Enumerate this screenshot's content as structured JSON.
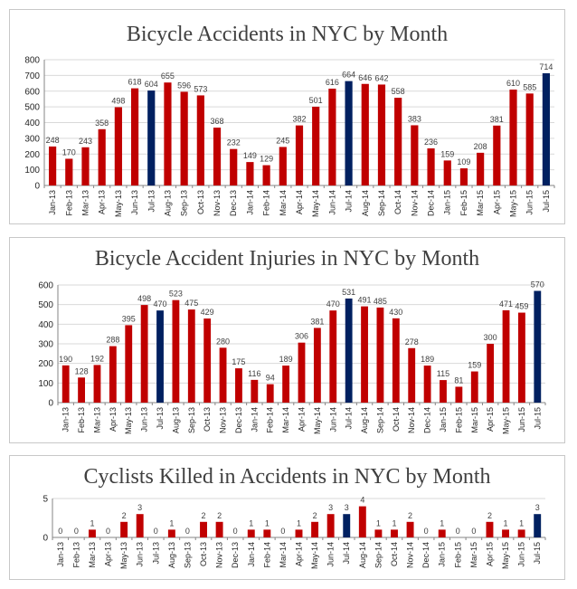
{
  "colors": {
    "red": "#c00000",
    "navy": "#002060"
  },
  "highlight_months": [
    "Jul-13",
    "Jul-14",
    "Jul-15"
  ],
  "chart_data": [
    {
      "type": "bar",
      "title": "Bicycle Accidents in NYC by Month",
      "categories": [
        "Jan-13",
        "Feb-13",
        "Mar-13",
        "Apr-13",
        "May-13",
        "Jun-13",
        "Jul-13",
        "Aug-13",
        "Sep-13",
        "Oct-13",
        "Nov-13",
        "Dec-13",
        "Jan-14",
        "Feb-14",
        "Mar-14",
        "Apr-14",
        "May-14",
        "Jun-14",
        "Jul-14",
        "Aug-14",
        "Sep-14",
        "Oct-14",
        "Nov-14",
        "Dec-14",
        "Jan-15",
        "Feb-15",
        "Mar-15",
        "Apr-15",
        "May-15",
        "Jun-15",
        "Jul-15"
      ],
      "values": [
        248,
        170,
        243,
        358,
        498,
        618,
        604,
        655,
        596,
        573,
        368,
        232,
        149,
        129,
        245,
        382,
        501,
        616,
        664,
        646,
        642,
        558,
        383,
        236,
        159,
        109,
        208,
        381,
        610,
        585,
        714
      ],
      "ylim": [
        0,
        800
      ],
      "yticks": [
        0,
        100,
        200,
        300,
        400,
        500,
        600,
        700,
        800
      ],
      "grid": true
    },
    {
      "type": "bar",
      "title": "Bicycle Accident Injuries in NYC by Month",
      "categories": [
        "Jan-13",
        "Feb-13",
        "Mar-13",
        "Apr-13",
        "May-13",
        "Jun-13",
        "Jul-13",
        "Aug-13",
        "Sep-13",
        "Oct-13",
        "Nov-13",
        "Dec-13",
        "Jan-14",
        "Feb-14",
        "Mar-14",
        "Apr-14",
        "May-14",
        "Jun-14",
        "Jul-14",
        "Aug-14",
        "Sep-14",
        "Oct-14",
        "Nov-14",
        "Dec-14",
        "Jan-15",
        "Feb-15",
        "Mar-15",
        "Apr-15",
        "May-15",
        "Jun-15",
        "Jul-15"
      ],
      "values": [
        190,
        128,
        192,
        288,
        395,
        498,
        470,
        523,
        475,
        429,
        280,
        175,
        116,
        94,
        189,
        306,
        381,
        470,
        531,
        491,
        485,
        430,
        278,
        189,
        115,
        81,
        159,
        300,
        471,
        459,
        570
      ],
      "ylim": [
        0,
        600
      ],
      "yticks": [
        0,
        100,
        200,
        300,
        400,
        500,
        600
      ],
      "grid": true
    },
    {
      "type": "bar",
      "title": "Cyclists Killed in Accidents in NYC by Month",
      "categories": [
        "Jan-13",
        "Feb-13",
        "Mar-13",
        "Apr-13",
        "May-13",
        "Jun-13",
        "Jul-13",
        "Aug-13",
        "Sep-13",
        "Oct-13",
        "Nov-13",
        "Dec-13",
        "Jan-14",
        "Feb-14",
        "Mar-14",
        "Apr-14",
        "May-14",
        "Jun-14",
        "Jul-14",
        "Aug-14",
        "Sep-14",
        "Oct-14",
        "Nov-14",
        "Dec-14",
        "Jan-15",
        "Feb-15",
        "Mar-15",
        "Apr-15",
        "May-15",
        "Jun-15",
        "Jul-15"
      ],
      "values": [
        0,
        0,
        1,
        0,
        2,
        3,
        0,
        1,
        0,
        2,
        2,
        0,
        1,
        1,
        0,
        1,
        2,
        3,
        3,
        4,
        1,
        1,
        2,
        0,
        1,
        0,
        0,
        2,
        1,
        1,
        3
      ],
      "ylim": [
        0,
        5
      ],
      "yticks": [
        0,
        5
      ],
      "grid": true
    }
  ]
}
